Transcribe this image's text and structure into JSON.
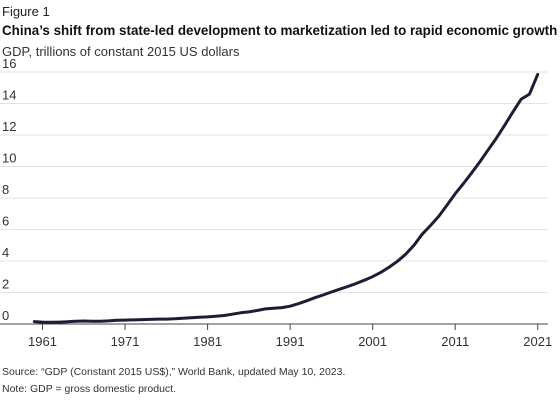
{
  "figure_label": "Figure 1",
  "chart_data": {
    "type": "line",
    "title": "China’s shift from state-led development to marketization led to rapid economic growth",
    "subtitle": "GDP, trillions of constant 2015 US dollars",
    "xlabel": "",
    "ylabel": "",
    "xlim": [
      1959,
      2022
    ],
    "ylim": [
      0,
      16
    ],
    "x_ticks": [
      1961,
      1971,
      1981,
      1991,
      2001,
      2011,
      2021
    ],
    "y_ticks": [
      0,
      2,
      4,
      6,
      8,
      10,
      12,
      14,
      16
    ],
    "grid": "horizontal",
    "line_color": "#1f1d36",
    "series": [
      {
        "x": [
          1960,
          1961,
          1962,
          1963,
          1964,
          1965,
          1966,
          1967,
          1968,
          1969,
          1970,
          1971,
          1972,
          1973,
          1974,
          1975,
          1976,
          1977,
          1978,
          1979,
          1980,
          1981,
          1982,
          1983,
          1984,
          1985,
          1986,
          1987,
          1988,
          1989,
          1990,
          1991,
          1992,
          1993,
          1994,
          1995,
          1996,
          1997,
          1998,
          1999,
          2000,
          2001,
          2002,
          2003,
          2004,
          2005,
          2006,
          2007,
          2008,
          2009,
          2010,
          2011,
          2012,
          2013,
          2014,
          2015,
          2016,
          2017,
          2018,
          2019,
          2020,
          2021
        ],
        "values": [
          0.15,
          0.12,
          0.11,
          0.12,
          0.14,
          0.17,
          0.19,
          0.18,
          0.17,
          0.2,
          0.24,
          0.25,
          0.26,
          0.28,
          0.29,
          0.31,
          0.31,
          0.33,
          0.37,
          0.4,
          0.43,
          0.45,
          0.49,
          0.54,
          0.62,
          0.71,
          0.77,
          0.86,
          0.96,
          1.0,
          1.04,
          1.13,
          1.29,
          1.47,
          1.67,
          1.84,
          2.03,
          2.21,
          2.39,
          2.57,
          2.78,
          3.01,
          3.28,
          3.61,
          3.98,
          4.43,
          4.99,
          5.7,
          6.25,
          6.83,
          7.55,
          8.27,
          8.92,
          9.6,
          10.31,
          11.06,
          11.81,
          12.62,
          13.47,
          14.28,
          14.6,
          15.85
        ]
      }
    ]
  },
  "source_note": "Source: “GDP (Constant 2015 US$),” World Bank, updated May 10, 2023.",
  "gdp_note": "Note: GDP = gross domestic product."
}
